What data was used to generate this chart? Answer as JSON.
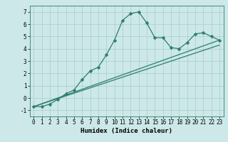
{
  "title": "",
  "xlabel": "Humidex (Indice chaleur)",
  "bg_color": "#cce8e8",
  "line_color": "#2e7d6e",
  "grid_color": "#aacccc",
  "x_min": -0.5,
  "x_max": 23.5,
  "y_min": -1.5,
  "y_max": 7.5,
  "x_ticks": [
    0,
    1,
    2,
    3,
    4,
    5,
    6,
    7,
    8,
    9,
    10,
    11,
    12,
    13,
    14,
    15,
    16,
    17,
    18,
    19,
    20,
    21,
    22,
    23
  ],
  "y_ticks": [
    -1,
    0,
    1,
    2,
    3,
    4,
    5,
    6,
    7
  ],
  "curve1_x": [
    0,
    1,
    2,
    3,
    4,
    5,
    6,
    7,
    8,
    9,
    10,
    11,
    12,
    13,
    14,
    15,
    16,
    17,
    18,
    19,
    20,
    21,
    22,
    23
  ],
  "curve1_y": [
    -0.7,
    -0.7,
    -0.5,
    -0.1,
    0.35,
    0.65,
    1.5,
    2.2,
    2.5,
    3.5,
    4.7,
    6.3,
    6.85,
    7.0,
    6.1,
    4.9,
    4.9,
    4.1,
    4.0,
    4.5,
    5.2,
    5.3,
    5.0,
    4.7
  ],
  "curve2_x": [
    0,
    23
  ],
  "curve2_y": [
    -0.7,
    4.7
  ],
  "curve3_x": [
    0,
    23
  ],
  "curve3_y": [
    -0.7,
    4.3
  ],
  "tick_fontsize": 5.5,
  "xlabel_fontsize": 6.5,
  "marker_size": 2.5,
  "line_width": 0.9
}
